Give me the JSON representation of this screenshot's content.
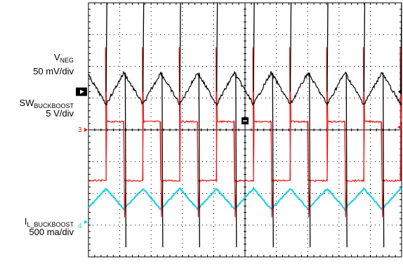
{
  "chart_data": {
    "type": "line",
    "title": "",
    "xlabel": "",
    "ylabel": "",
    "grid": true,
    "divisions": {
      "x": 10,
      "y": 8
    },
    "series": [
      {
        "name": "V",
        "name_sub": "NEG",
        "scale": "50 mV/div",
        "color": "#000000",
        "waveform": "triangle",
        "offset_div": 5.2,
        "low_div": 4.8,
        "high_div": 5.8,
        "amplitude_mV": 50,
        "spike_up_div": 8.0,
        "spike_down_div": 0.3
      },
      {
        "name": "SW",
        "name_sub": "BUCKBOOST",
        "scale": "5 V/div",
        "color": "#e8191a",
        "waveform": "square",
        "high_div": 4.26,
        "low_div": 2.4,
        "marker": "3"
      },
      {
        "name": "I",
        "name_sub": "L_BUCKBOOST",
        "scale": "500 ma/div",
        "color": "#21d1e2",
        "waveform": "triangle",
        "low_div": 1.5,
        "high_div": 2.15,
        "marker": "4"
      }
    ],
    "switching_periods_on_screen": 8.5
  }
}
